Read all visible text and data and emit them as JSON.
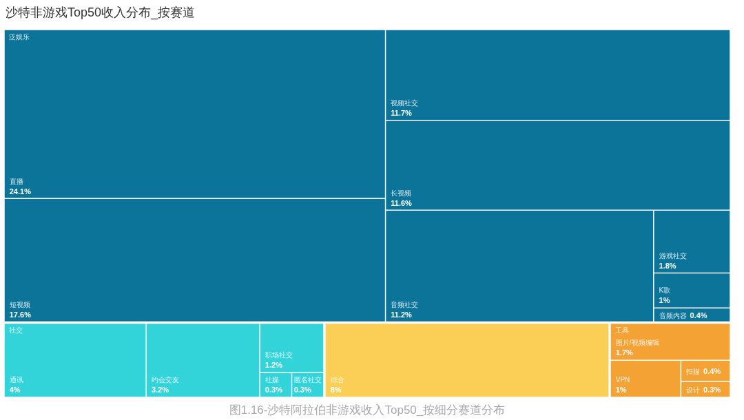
{
  "chart_data": {
    "type": "other",
    "title": "沙特非游戏Top50收入分布_按赛道",
    "categories": [
      "直播",
      "短视频",
      "视频社交",
      "长视频",
      "音频社交",
      "游戏社交",
      "K歌",
      "音频内容",
      "通讯",
      "约会交友",
      "职场社交",
      "社媒",
      "匿名社交",
      "综合",
      "图片/视频编辑",
      "VPN",
      "扫描",
      "设计"
    ],
    "series": [
      {
        "name": "泛娱乐",
        "color": "#0c7499",
        "values": [
          24.1,
          17.6,
          11.7,
          11.6,
          11.2,
          1.8,
          1,
          0.4,
          null,
          null,
          null,
          null,
          null,
          null,
          null,
          null,
          null,
          null
        ],
        "value_labels": [
          "24.1%",
          "17.6%",
          "11.7%",
          "11.6%",
          "11.2%",
          "1.8%",
          "1%",
          "0.4%",
          null,
          null,
          null,
          null,
          null,
          null,
          null,
          null,
          null,
          null
        ]
      },
      {
        "name": "社交",
        "color": "#33d3da",
        "values": [
          null,
          null,
          null,
          null,
          null,
          null,
          null,
          null,
          4,
          3.2,
          1.2,
          0.3,
          0.3,
          null,
          null,
          null,
          null,
          null
        ],
        "value_labels": [
          null,
          null,
          null,
          null,
          null,
          null,
          null,
          null,
          "4%",
          "3.2%",
          "1.2%",
          "0.3%",
          "0.3%",
          null,
          null,
          null,
          null,
          null
        ]
      },
      {
        "color": "#fbce56",
        "values": [
          null,
          null,
          null,
          null,
          null,
          null,
          null,
          null,
          null,
          null,
          null,
          null,
          null,
          8,
          null,
          null,
          null,
          null
        ],
        "value_labels": [
          null,
          null,
          null,
          null,
          null,
          null,
          null,
          null,
          null,
          null,
          null,
          null,
          null,
          "8%",
          null,
          null,
          null,
          null
        ]
      },
      {
        "name": "工具",
        "color": "#f5a235",
        "values": [
          null,
          null,
          null,
          null,
          null,
          null,
          null,
          null,
          null,
          null,
          null,
          null,
          null,
          null,
          1.7,
          1,
          0.4,
          0.3
        ],
        "value_labels": [
          null,
          null,
          null,
          null,
          null,
          null,
          null,
          null,
          null,
          null,
          null,
          null,
          null,
          null,
          "1.7%",
          "1%",
          "0.4%",
          "0.3%"
        ]
      }
    ],
    "annotations": [
      "图1.16-沙特阿拉伯非游戏收入Top50_按细分赛道分布"
    ]
  }
}
